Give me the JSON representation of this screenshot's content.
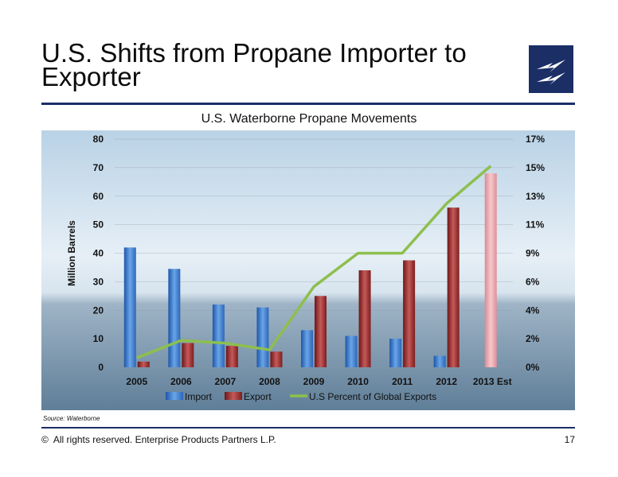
{
  "slide": {
    "title": "U.S. Shifts from Propane Importer to Exporter",
    "source": "Source:  Waterborne",
    "footer": "All rights reserved. Enterprise Products Partners L.P.",
    "copyright_symbol": "©",
    "page_number": "17",
    "logo_icon": "lightning-bolt-logo-icon",
    "brand_color": "#1b2f66"
  },
  "chart_data": {
    "type": "bar",
    "title": "U.S. Waterborne Propane Movements",
    "xlabel": "",
    "ylabel": "Million Barrels",
    "categories": [
      "2005",
      "2006",
      "2007",
      "2008",
      "2009",
      "2010",
      "2011",
      "2012",
      "2013 Est"
    ],
    "ylim": [
      0,
      80
    ],
    "yticks": [
      "0",
      "10",
      "20",
      "30",
      "40",
      "50",
      "60",
      "70",
      "80"
    ],
    "y2lim": [
      0,
      17
    ],
    "y2ticks": [
      "0%",
      "2%",
      "4%",
      "6%",
      "9%",
      "11%",
      "13%",
      "15%",
      "17%"
    ],
    "series": [
      {
        "name": "Import",
        "kind": "bar",
        "axis": "left",
        "color": "#3a78c9",
        "values": [
          42,
          34.5,
          22,
          21,
          13,
          11,
          10,
          4,
          null
        ]
      },
      {
        "name": "Export",
        "kind": "bar",
        "axis": "left",
        "color": "#9b2a2a",
        "values": [
          2,
          8.5,
          7.5,
          5.5,
          25,
          34,
          37.5,
          56,
          68
        ],
        "highlight": {
          "index": 8,
          "color": "#e9a0a6"
        }
      },
      {
        "name": "U.S Percent of Global Exports",
        "kind": "line",
        "axis": "right",
        "color": "#8dbf4e",
        "values": [
          0.7,
          2.0,
          1.8,
          1.3,
          6.0,
          8.5,
          8.5,
          12.2,
          15.0
        ]
      }
    ],
    "grid": true,
    "legend": "bottom"
  }
}
